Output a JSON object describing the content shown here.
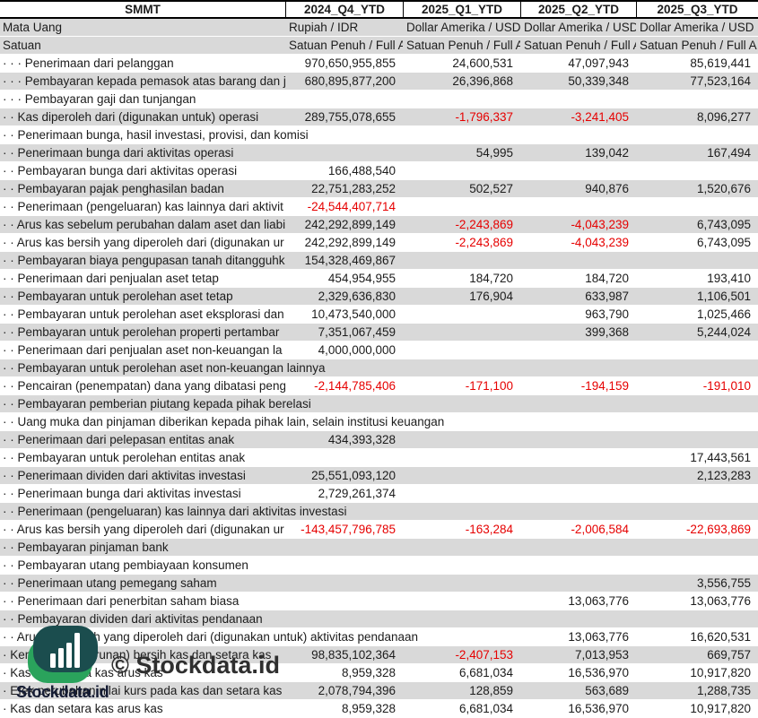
{
  "table": {
    "ticker": "SMMT",
    "columns": [
      "2024_Q4_YTD",
      "2025_Q1_YTD",
      "2025_Q2_YTD",
      "2025_Q3_YTD"
    ],
    "rows": [
      {
        "indent": "· · · ",
        "label": "Penerimaan dari pelanggan",
        "clip": false,
        "values": [
          "970,650,955,855",
          "24,600,531",
          "47,097,943",
          "85,619,441"
        ]
      },
      {
        "indent": "· · · ",
        "label": "Pembayaran kepada pemasok atas barang dan ja",
        "clip": true,
        "values": [
          "680,895,877,200",
          "26,396,868",
          "50,339,348",
          "77,523,164"
        ]
      },
      {
        "indent": "· · · ",
        "label": "Pembayaran gaji dan tunjangan",
        "clip": false,
        "values": [
          "",
          "",
          "",
          ""
        ]
      },
      {
        "indent": "· · ",
        "label": "Kas diperoleh dari (digunakan untuk) operasi",
        "clip": false,
        "values": [
          "289,755,078,655",
          "-1,796,337",
          "-3,241,405",
          "8,096,277"
        ]
      },
      {
        "indent": "· · ",
        "label": "Penerimaan bunga, hasil investasi, provisi, dan komisi",
        "clip": false,
        "values": [
          "",
          "",
          "",
          ""
        ]
      },
      {
        "indent": "· · ",
        "label": "Penerimaan bunga dari aktivitas operasi",
        "clip": false,
        "values": [
          "",
          "54,995",
          "139,042",
          "167,494"
        ]
      },
      {
        "indent": "· · ",
        "label": "Pembayaran bunga dari aktivitas operasi",
        "clip": false,
        "values": [
          "166,488,540",
          "",
          "",
          ""
        ]
      },
      {
        "indent": "· · ",
        "label": "Pembayaran pajak penghasilan badan",
        "clip": false,
        "values": [
          "22,751,283,252",
          "502,527",
          "940,876",
          "1,520,676"
        ]
      },
      {
        "indent": "· · ",
        "label": "Penerimaan (pengeluaran) kas lainnya dari aktivit",
        "clip": true,
        "values": [
          "-24,544,407,714",
          "",
          "",
          ""
        ]
      },
      {
        "indent": "· · ",
        "label": "Arus kas sebelum perubahan dalam aset dan liabi",
        "clip": true,
        "values": [
          "242,292,899,149",
          "-2,243,869",
          "-4,043,239",
          "6,743,095"
        ]
      },
      {
        "indent": "· · ",
        "label": "Arus kas bersih yang diperoleh dari (digunakan ur",
        "clip": true,
        "values": [
          "242,292,899,149",
          "-2,243,869",
          "-4,043,239",
          "6,743,095"
        ]
      },
      {
        "indent": "· · ",
        "label": "Pembayaran biaya pengupasan tanah ditangguhka",
        "clip": true,
        "values": [
          "154,328,469,867",
          "",
          "",
          ""
        ]
      },
      {
        "indent": "· · ",
        "label": "Penerimaan dari penjualan aset tetap",
        "clip": false,
        "values": [
          "454,954,955",
          "184,720",
          "184,720",
          "193,410"
        ]
      },
      {
        "indent": "· · ",
        "label": "Pembayaran untuk perolehan aset tetap",
        "clip": false,
        "values": [
          "2,329,636,830",
          "176,904",
          "633,987",
          "1,106,501"
        ]
      },
      {
        "indent": "· · ",
        "label": "Pembayaran untuk perolehan aset eksplorasi dan",
        "clip": true,
        "values": [
          "10,473,540,000",
          "",
          "963,790",
          "1,025,466"
        ]
      },
      {
        "indent": "· · ",
        "label": "Pembayaran untuk perolehan properti pertambar",
        "clip": true,
        "values": [
          "7,351,067,459",
          "",
          "399,368",
          "5,244,024"
        ]
      },
      {
        "indent": "· · ",
        "label": "Penerimaan dari penjualan aset non-keuangan la",
        "clip": true,
        "values": [
          "4,000,000,000",
          "",
          "",
          ""
        ]
      },
      {
        "indent": "· · ",
        "label": "Pembayaran untuk perolehan aset non-keuangan lainnya",
        "clip": false,
        "values": [
          "",
          "",
          "",
          ""
        ]
      },
      {
        "indent": "· · ",
        "label": "Pencairan (penempatan) dana yang dibatasi peng",
        "clip": true,
        "values": [
          "-2,144,785,406",
          "-171,100",
          "-194,159",
          "-191,010"
        ]
      },
      {
        "indent": "· · ",
        "label": "Pembayaran pemberian piutang kepada pihak berelasi",
        "clip": false,
        "values": [
          "",
          "",
          "",
          ""
        ]
      },
      {
        "indent": "· · ",
        "label": "Uang muka dan pinjaman diberikan kepada pihak lain, selain institusi keuangan",
        "clip": false,
        "values": [
          "",
          "",
          "",
          ""
        ]
      },
      {
        "indent": "· · ",
        "label": "Penerimaan dari pelepasan entitas anak",
        "clip": false,
        "values": [
          "434,393,328",
          "",
          "",
          ""
        ]
      },
      {
        "indent": "· · ",
        "label": "Pembayaran untuk perolehan entitas anak",
        "clip": false,
        "values": [
          "",
          "",
          "",
          "17,443,561"
        ]
      },
      {
        "indent": "· · ",
        "label": "Penerimaan dividen dari aktivitas investasi",
        "clip": false,
        "values": [
          "25,551,093,120",
          "",
          "",
          "2,123,283"
        ]
      },
      {
        "indent": "· · ",
        "label": "Penerimaan bunga dari aktivitas investasi",
        "clip": false,
        "values": [
          "2,729,261,374",
          "",
          "",
          ""
        ]
      },
      {
        "indent": "· · ",
        "label": "Penerimaan (pengeluaran) kas lainnya dari aktivitas investasi",
        "clip": false,
        "values": [
          "",
          "",
          "",
          ""
        ]
      },
      {
        "indent": "· · ",
        "label": "Arus kas bersih yang diperoleh dari (digunakan ur",
        "clip": true,
        "values": [
          "-143,457,796,785",
          "-163,284",
          "-2,006,584",
          "-22,693,869"
        ]
      },
      {
        "indent": "· · ",
        "label": "Pembayaran pinjaman bank",
        "clip": false,
        "values": [
          "",
          "",
          "",
          ""
        ]
      },
      {
        "indent": "· · ",
        "label": "Pembayaran utang pembiayaan konsumen",
        "clip": false,
        "values": [
          "",
          "",
          "",
          ""
        ]
      },
      {
        "indent": "· · ",
        "label": "Penerimaan utang pemegang saham",
        "clip": false,
        "values": [
          "",
          "",
          "",
          "3,556,755"
        ]
      },
      {
        "indent": "· · ",
        "label": "Penerimaan dari penerbitan saham biasa",
        "clip": false,
        "values": [
          "",
          "",
          "13,063,776",
          "13,063,776"
        ]
      },
      {
        "indent": "· · ",
        "label": "Pembayaran dividen dari aktivitas pendanaan",
        "clip": false,
        "values": [
          "",
          "",
          "",
          ""
        ]
      },
      {
        "indent": "· · ",
        "label": "Arus kas bersih yang diperoleh dari (digunakan untuk) aktivitas pendanaan",
        "clip": false,
        "values": [
          "",
          "",
          "13,063,776",
          "16,620,531"
        ]
      },
      {
        "indent": "· ",
        "label": "Kenaikan (penurunan) bersih kas dan setara kas",
        "clip": false,
        "values": [
          "98,835,102,364",
          "-2,407,153",
          "7,013,953",
          "669,757"
        ]
      },
      {
        "indent": "· ",
        "label": "Kas dan setara kas arus kas",
        "clip": false,
        "values": [
          "8,959,328",
          "6,681,034",
          "16,536,970",
          "10,917,820"
        ]
      },
      {
        "indent": "· ",
        "label": "Efek perubahan nilai kurs pada kas dan setara kas",
        "clip": false,
        "values": [
          "2,078,794,396",
          "128,859",
          "563,689",
          "1,288,735"
        ]
      },
      {
        "indent": "· ",
        "label": "Kas dan setara kas arus kas",
        "clip": false,
        "values": [
          "8,959,328",
          "6,681,034",
          "16,536,970",
          "10,917,820"
        ]
      }
    ]
  },
  "meta": {
    "mata_uang": {
      "label": "Mata Uang",
      "values": [
        "Rupiah / IDR",
        "Dollar Amerika / USD",
        "Dollar Amerika / USD",
        "Dollar Amerika / USD"
      ]
    },
    "satuan": {
      "label": "Satuan",
      "values": [
        "Satuan Penuh / Full A",
        "Satuan Penuh / Full A",
        "Satuan Penuh / Full A",
        "Satuan Penuh / Full A"
      ]
    }
  },
  "branding": {
    "watermark": "© Stockdata.id",
    "logo_text": "Stockdata.id"
  },
  "colors": {
    "negative": "#e60000",
    "row_alt": "#d9d9d9",
    "border": "#000000",
    "logo_teal": "#1b4d4e",
    "logo_green": "#2aa35c",
    "logo_text": "#141b33",
    "watermark": "#2f2f2f"
  }
}
